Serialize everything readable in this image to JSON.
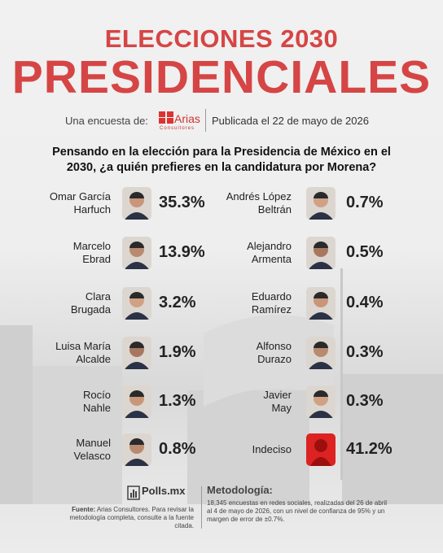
{
  "header": {
    "title_top": "ELECCIONES 2030",
    "title": "PRESIDENCIALES",
    "survey_by": "Una encuesta de:",
    "pollster": "Arias",
    "pollster_sub": "Consultores",
    "published": "Publicada el 22 de mayo de 2026"
  },
  "question": "Pensando en la elección para la Presidencia de México en el 2030, ¿a quién prefieres en la candidatura por Morena?",
  "columns": [
    [
      {
        "name": [
          "Omar García",
          "Harfuch"
        ],
        "share": "35.3%"
      },
      {
        "name": [
          "Marcelo",
          "Ebrad"
        ],
        "share": "13.9%"
      },
      {
        "name": [
          "Clara",
          "Brugada"
        ],
        "share": "3.2%"
      },
      {
        "name": [
          "Luisa María",
          "Alcalde"
        ],
        "share": "1.9%"
      },
      {
        "name": [
          "Rocío",
          "Nahle"
        ],
        "share": "1.3%"
      },
      {
        "name": [
          "Manuel",
          "Velasco"
        ],
        "share": "0.8%"
      }
    ],
    [
      {
        "name": [
          "Andrés López",
          "Beltrán"
        ],
        "share": "0.7%"
      },
      {
        "name": [
          "Alejandro",
          "Armenta"
        ],
        "share": "0.5%"
      },
      {
        "name": [
          "Eduardo",
          "Ramírez"
        ],
        "share": "0.4%"
      },
      {
        "name": [
          "Alfonso",
          "Durazo"
        ],
        "share": "0.3%"
      },
      {
        "name": [
          "Javier",
          "May"
        ],
        "share": "0.3%"
      },
      {
        "name": [
          "Indeciso"
        ],
        "share": "41.2%"
      }
    ]
  ],
  "footer": {
    "brand": "Polls.mx",
    "source_label": "Fuente:",
    "source": "Arias Consultores. Para revisar la metodología completa, consulte a la fuente citada.",
    "method_title": "Metodología:",
    "method": "18,345 encuestas en redes sociales, realizadas del 26 de abril al 4 de mayo de 2026, con un nivel de confianza de 95% y un margen de error de ±0.7%."
  }
}
